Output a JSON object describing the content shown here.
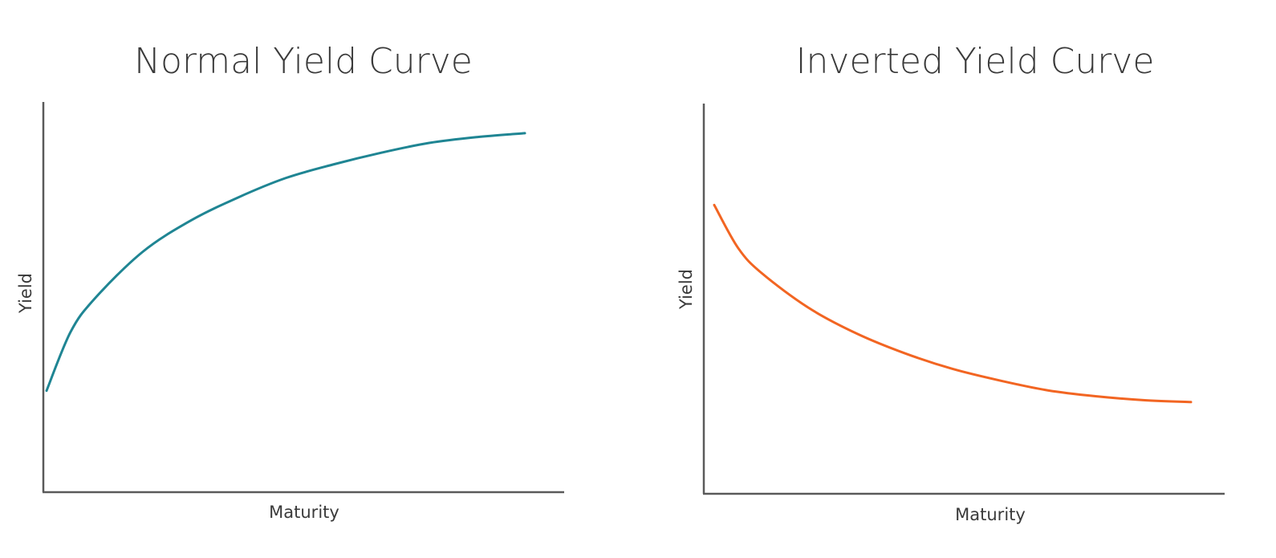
{
  "chart_data": [
    {
      "type": "line",
      "title": "Normal Yield Curve",
      "xlabel": "Maturity",
      "ylabel": "Yield",
      "xlim": [
        0,
        10
      ],
      "ylim": [
        0,
        10
      ],
      "grid": false,
      "series": [
        {
          "color": "#1f8593",
          "x": [
            0.0,
            0.5,
            1.0,
            2.0,
            3.0,
            4.0,
            5.0,
            6.0,
            7.0,
            8.0,
            9.0,
            10.0
          ],
          "values": [
            2.6,
            4.1,
            4.95,
            6.15,
            6.95,
            7.55,
            8.05,
            8.4,
            8.7,
            8.95,
            9.1,
            9.2
          ]
        }
      ]
    },
    {
      "type": "line",
      "title": "Inverted Yield Curve",
      "xlabel": "Maturity",
      "ylabel": "Yield",
      "xlim": [
        0,
        10
      ],
      "ylim": [
        0,
        10
      ],
      "grid": false,
      "series": [
        {
          "color": "#f26522",
          "x": [
            0.0,
            0.5,
            1.0,
            2.0,
            3.0,
            4.0,
            5.0,
            6.0,
            7.0,
            8.0,
            9.0,
            10.0
          ],
          "values": [
            7.4,
            6.3,
            5.65,
            4.75,
            4.1,
            3.6,
            3.2,
            2.9,
            2.65,
            2.5,
            2.4,
            2.35
          ]
        }
      ]
    }
  ]
}
